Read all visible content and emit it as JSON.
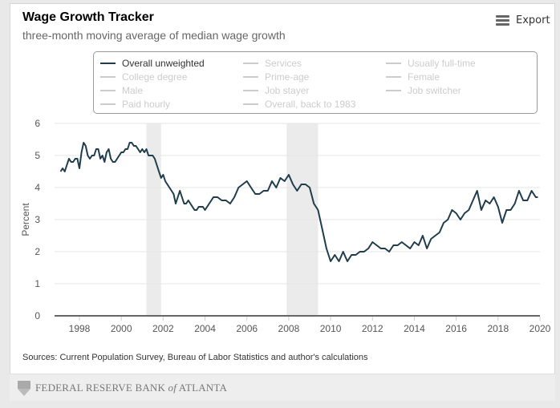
{
  "header": {
    "title": "Wage Growth Tracker",
    "subtitle": "three-month moving average of median wage growth",
    "export_label": "Export",
    "export_icon": "hamburger-menu-icon"
  },
  "legend": {
    "items": [
      {
        "label": "Overall unweighted",
        "active": true
      },
      {
        "label": "Services",
        "active": false
      },
      {
        "label": "Usually full-time",
        "active": false
      },
      {
        "label": "College degree",
        "active": false
      },
      {
        "label": "Prime-age",
        "active": false
      },
      {
        "label": "Female",
        "active": false
      },
      {
        "label": "Male",
        "active": false
      },
      {
        "label": "Job stayer",
        "active": false
      },
      {
        "label": "Job switcher",
        "active": false
      },
      {
        "label": "Paid hourly",
        "active": false
      },
      {
        "label": "Overall, back to 1983",
        "active": false
      }
    ]
  },
  "colors": {
    "line": "#1f3d4c",
    "recession_band": "#ebebeb",
    "gridline": "#e6e6e6",
    "axis_line": "#666666",
    "legend_inactive": "#cccccc"
  },
  "sources": "Sources: Current Population Survey, Bureau of Labor Statistics and author's calculations",
  "footer": {
    "logo_icon": "federal-reserve-eagle-icon",
    "org_name_part1": "FEDERAL RESERVE BANK ",
    "org_name_of": "of",
    "org_name_part2": " ATLANTA"
  },
  "chart_data": {
    "type": "line",
    "title": "Wage Growth Tracker",
    "subtitle": "three-month moving average of median wage growth",
    "xlabel": "",
    "ylabel": "Percent",
    "xlim": [
      1996.85,
      2020.0
    ],
    "ylim": [
      0,
      6
    ],
    "x_ticks": [
      1998,
      2000,
      2002,
      2004,
      2006,
      2008,
      2010,
      2012,
      2014,
      2016,
      2018,
      2020
    ],
    "x_tick_labels": [
      "1998",
      "2000",
      "2002",
      "2004",
      "2006",
      "2008",
      "2010",
      "2012",
      "2014",
      "2016",
      "2018",
      "2020"
    ],
    "y_ticks": [
      0,
      1,
      2,
      3,
      4,
      5,
      6
    ],
    "y_tick_labels": [
      "0",
      "1",
      "2",
      "3",
      "4",
      "5",
      "6"
    ],
    "grid": true,
    "legend_position": "top",
    "recession_bands": [
      {
        "start": 2001.2,
        "end": 2001.9
      },
      {
        "start": 2007.9,
        "end": 2009.4
      }
    ],
    "series": [
      {
        "name": "Overall unweighted",
        "x": [
          1997.1,
          1997.2,
          1997.3,
          1997.4,
          1997.5,
          1997.6,
          1997.7,
          1997.8,
          1997.9,
          1998.0,
          1998.1,
          1998.2,
          1998.3,
          1998.4,
          1998.5,
          1998.6,
          1998.7,
          1998.8,
          1998.9,
          1999.0,
          1999.1,
          1999.2,
          1999.3,
          1999.4,
          1999.5,
          1999.6,
          1999.7,
          1999.8,
          1999.9,
          2000.0,
          2000.1,
          2000.2,
          2000.3,
          2000.4,
          2000.5,
          2000.6,
          2000.7,
          2000.8,
          2000.9,
          2001.0,
          2001.1,
          2001.2,
          2001.3,
          2001.4,
          2001.5,
          2001.6,
          2001.7,
          2001.8,
          2001.9,
          2002.0,
          2002.1,
          2002.2,
          2002.3,
          2002.4,
          2002.5,
          2002.6,
          2002.7,
          2002.8,
          2002.9,
          2003.0,
          2003.1,
          2003.2,
          2003.3,
          2003.4,
          2003.5,
          2003.6,
          2003.7,
          2003.8,
          2003.9,
          2004.0,
          2004.2,
          2004.4,
          2004.6,
          2004.8,
          2005.0,
          2005.2,
          2005.4,
          2005.6,
          2005.8,
          2006.0,
          2006.2,
          2006.4,
          2006.6,
          2006.8,
          2007.0,
          2007.2,
          2007.4,
          2007.6,
          2007.8,
          2008.0,
          2008.2,
          2008.4,
          2008.6,
          2008.8,
          2009.0,
          2009.2,
          2009.4,
          2009.6,
          2009.8,
          2010.0,
          2010.2,
          2010.4,
          2010.6,
          2010.8,
          2011.0,
          2011.2,
          2011.4,
          2011.6,
          2011.8,
          2012.0,
          2012.2,
          2012.4,
          2012.6,
          2012.8,
          2013.0,
          2013.2,
          2013.4,
          2013.6,
          2013.8,
          2014.0,
          2014.2,
          2014.4,
          2014.6,
          2014.8,
          2015.0,
          2015.2,
          2015.4,
          2015.6,
          2015.8,
          2016.0,
          2016.2,
          2016.4,
          2016.6,
          2016.8,
          2017.0,
          2017.2,
          2017.4,
          2017.6,
          2017.8,
          2018.0,
          2018.2,
          2018.4,
          2018.6,
          2018.8,
          2019.0,
          2019.2,
          2019.4,
          2019.6,
          2019.8,
          2019.9
        ],
        "y": [
          4.5,
          4.6,
          4.5,
          4.7,
          4.9,
          4.8,
          4.8,
          4.9,
          4.9,
          4.6,
          5.1,
          5.4,
          5.3,
          5.0,
          4.9,
          5.0,
          5.0,
          5.2,
          5.2,
          4.9,
          5.0,
          4.8,
          5.1,
          5.2,
          4.9,
          4.8,
          4.8,
          4.9,
          5.0,
          5.1,
          5.1,
          5.2,
          5.2,
          5.4,
          5.4,
          5.3,
          5.3,
          5.2,
          5.1,
          5.2,
          5.1,
          5.2,
          5.0,
          5.0,
          5.0,
          4.9,
          4.7,
          4.5,
          4.3,
          4.4,
          4.2,
          4.1,
          4.0,
          3.9,
          3.8,
          3.5,
          3.7,
          3.9,
          3.7,
          3.5,
          3.5,
          3.6,
          3.5,
          3.4,
          3.3,
          3.3,
          3.4,
          3.4,
          3.4,
          3.3,
          3.5,
          3.7,
          3.7,
          3.6,
          3.6,
          3.5,
          3.7,
          4.0,
          4.1,
          4.2,
          4.0,
          3.8,
          3.8,
          3.9,
          3.9,
          4.2,
          4.0,
          4.3,
          4.2,
          4.4,
          4.1,
          3.9,
          4.1,
          4.1,
          4.0,
          3.5,
          3.3,
          2.7,
          2.1,
          1.7,
          1.9,
          1.7,
          2.0,
          1.7,
          1.9,
          1.9,
          2.0,
          2.0,
          2.1,
          2.3,
          2.2,
          2.1,
          2.1,
          2.0,
          2.2,
          2.2,
          2.3,
          2.2,
          2.1,
          2.3,
          2.2,
          2.5,
          2.1,
          2.4,
          2.5,
          2.6,
          2.9,
          3.0,
          3.3,
          3.2,
          3.0,
          3.2,
          3.3,
          3.6,
          3.9,
          3.3,
          3.6,
          3.5,
          3.7,
          3.4,
          2.9,
          3.3,
          3.3,
          3.5,
          3.9,
          3.6,
          3.6,
          3.9,
          3.7,
          3.7
        ]
      }
    ]
  }
}
